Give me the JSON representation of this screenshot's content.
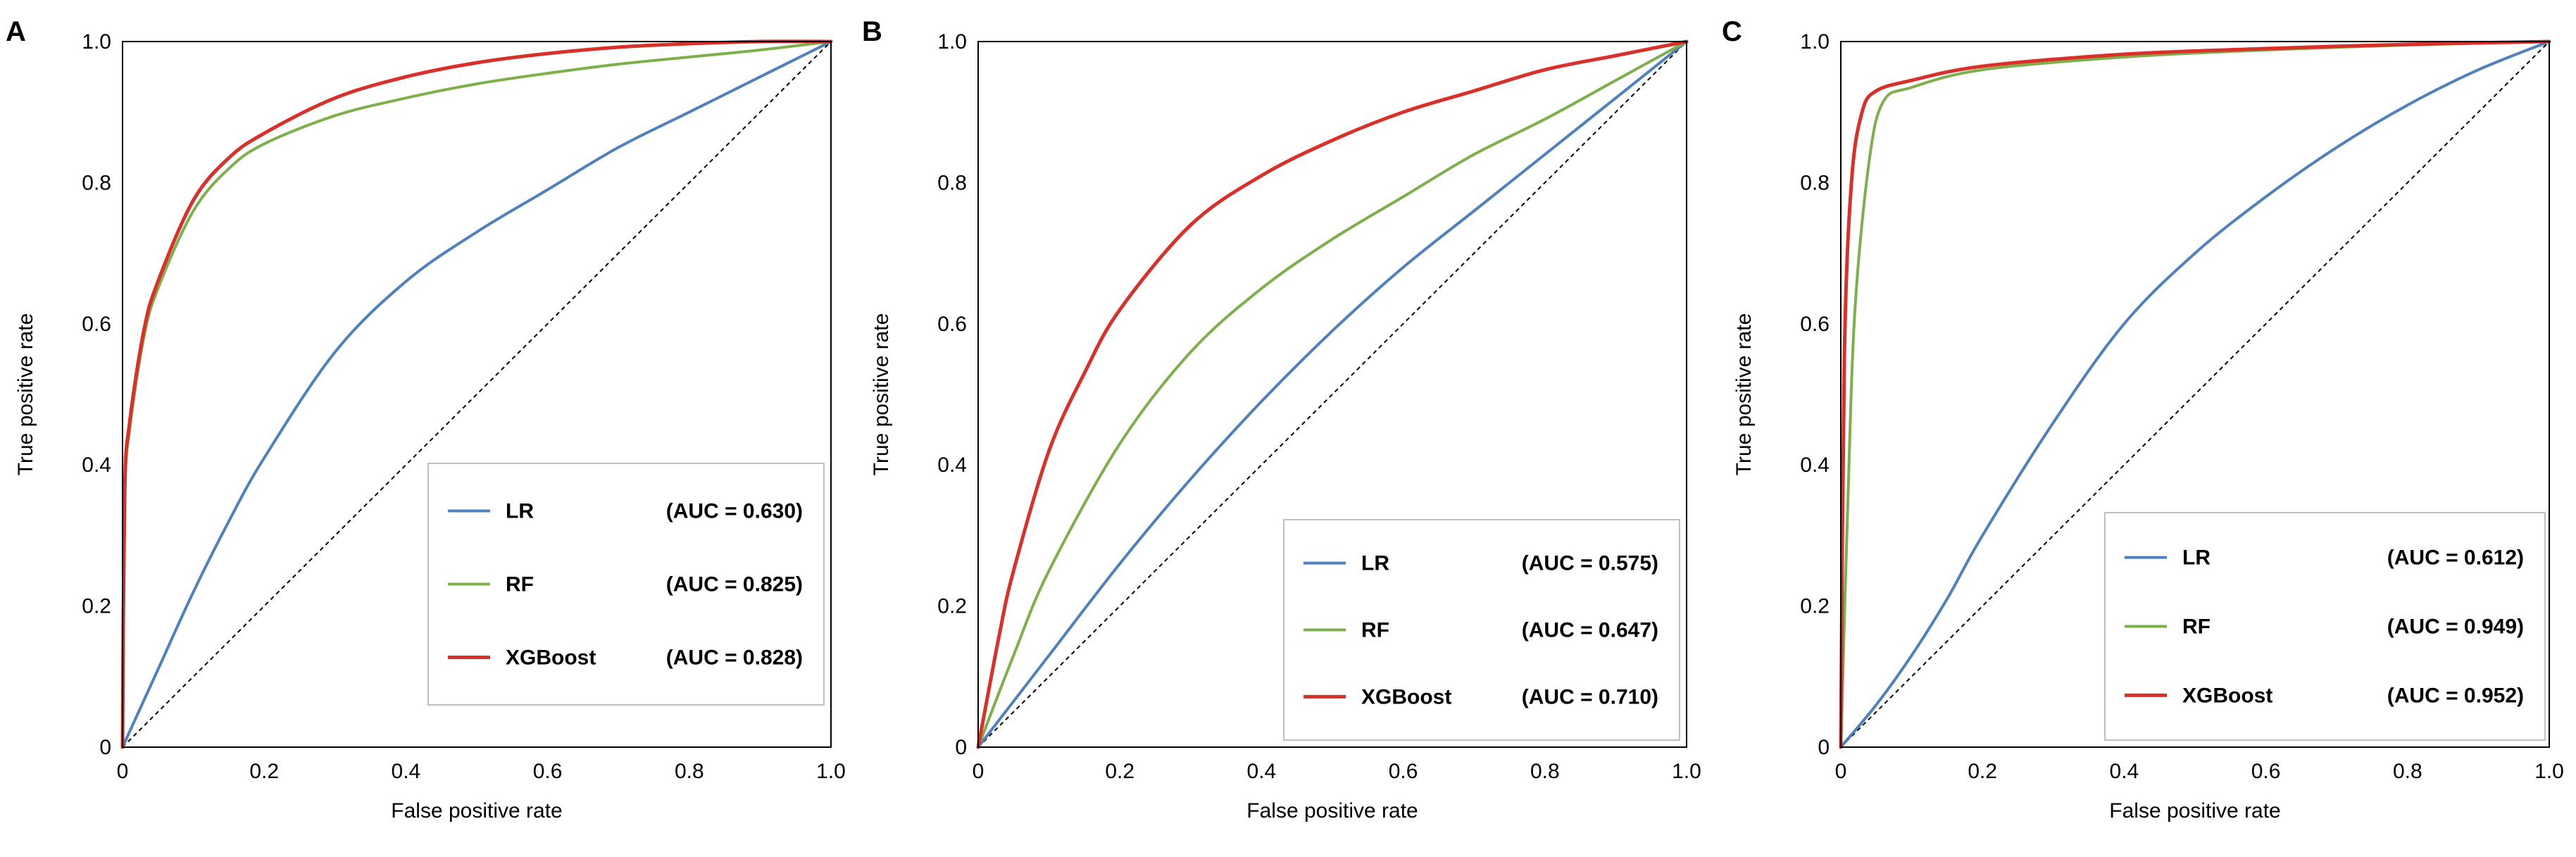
{
  "chart_data": [
    {
      "type": "line",
      "panel": "A",
      "xlabel": "False positive rate",
      "ylabel": "True positive rate",
      "xlim": [
        0,
        1
      ],
      "ylim": [
        0,
        1
      ],
      "x_tick_labels": [
        "0",
        "0.2",
        "0.4",
        "0.6",
        "0.8",
        "1.0"
      ],
      "y_tick_labels": [
        "0",
        "0.2",
        "0.4",
        "0.6",
        "0.8",
        "1.0"
      ],
      "legend_position": "bottom-right",
      "series": [
        {
          "name": "LR",
          "auc_label": "(AUC = 0.630)",
          "color": "#4f81bd",
          "points": [
            [
              0,
              0
            ],
            [
              0.05,
              0.11
            ],
            [
              0.1,
              0.22
            ],
            [
              0.15,
              0.32
            ],
            [
              0.2,
              0.41
            ],
            [
              0.3,
              0.56
            ],
            [
              0.4,
              0.66
            ],
            [
              0.5,
              0.73
            ],
            [
              0.6,
              0.79
            ],
            [
              0.7,
              0.85
            ],
            [
              0.8,
              0.9
            ],
            [
              0.9,
              0.95
            ],
            [
              1,
              1
            ]
          ]
        },
        {
          "name": "RF",
          "auc_label": "(AUC = 0.825)",
          "color": "#7db04b",
          "points": [
            [
              0,
              0
            ],
            [
              0.003,
              0.35
            ],
            [
              0.01,
              0.45
            ],
            [
              0.03,
              0.58
            ],
            [
              0.05,
              0.65
            ],
            [
              0.1,
              0.76
            ],
            [
              0.15,
              0.82
            ],
            [
              0.2,
              0.855
            ],
            [
              0.3,
              0.895
            ],
            [
              0.4,
              0.92
            ],
            [
              0.5,
              0.94
            ],
            [
              0.6,
              0.955
            ],
            [
              0.7,
              0.968
            ],
            [
              0.8,
              0.978
            ],
            [
              0.9,
              0.988
            ],
            [
              1,
              1
            ]
          ]
        },
        {
          "name": "XGBoost",
          "auc_label": "(AUC = 0.828)",
          "color": "#d9302a",
          "points": [
            [
              0,
              0
            ],
            [
              0.003,
              0.36
            ],
            [
              0.01,
              0.46
            ],
            [
              0.03,
              0.59
            ],
            [
              0.05,
              0.66
            ],
            [
              0.1,
              0.775
            ],
            [
              0.15,
              0.835
            ],
            [
              0.2,
              0.87
            ],
            [
              0.3,
              0.92
            ],
            [
              0.4,
              0.95
            ],
            [
              0.5,
              0.97
            ],
            [
              0.6,
              0.983
            ],
            [
              0.7,
              0.992
            ],
            [
              0.8,
              0.997
            ],
            [
              0.9,
              1
            ],
            [
              1,
              1
            ]
          ]
        }
      ]
    },
    {
      "type": "line",
      "panel": "B",
      "xlabel": "False positive rate",
      "ylabel": "True positive rate",
      "xlim": [
        0,
        1
      ],
      "ylim": [
        0,
        1
      ],
      "x_tick_labels": [
        "0",
        "0.2",
        "0.4",
        "0.6",
        "0.8",
        "1.0"
      ],
      "y_tick_labels": [
        "0",
        "0.2",
        "0.4",
        "0.6",
        "0.8",
        "1.0"
      ],
      "legend_position": "bottom-right",
      "series": [
        {
          "name": "LR",
          "auc_label": "(AUC = 0.575)",
          "color": "#4f81bd",
          "points": [
            [
              0,
              0
            ],
            [
              0.1,
              0.13
            ],
            [
              0.2,
              0.26
            ],
            [
              0.3,
              0.38
            ],
            [
              0.4,
              0.49
            ],
            [
              0.5,
              0.59
            ],
            [
              0.6,
              0.68
            ],
            [
              0.7,
              0.76
            ],
            [
              0.8,
              0.84
            ],
            [
              0.9,
              0.92
            ],
            [
              1,
              1
            ]
          ]
        },
        {
          "name": "RF",
          "auc_label": "(AUC = 0.647)",
          "color": "#7db04b",
          "points": [
            [
              0,
              0
            ],
            [
              0.05,
              0.13
            ],
            [
              0.1,
              0.25
            ],
            [
              0.2,
              0.43
            ],
            [
              0.3,
              0.56
            ],
            [
              0.4,
              0.65
            ],
            [
              0.5,
              0.72
            ],
            [
              0.6,
              0.78
            ],
            [
              0.7,
              0.84
            ],
            [
              0.8,
              0.89
            ],
            [
              0.9,
              0.945
            ],
            [
              1,
              1
            ]
          ]
        },
        {
          "name": "XGBoost",
          "auc_label": "(AUC = 0.710)",
          "color": "#d9302a",
          "points": [
            [
              0,
              0
            ],
            [
              0.03,
              0.16
            ],
            [
              0.05,
              0.25
            ],
            [
              0.1,
              0.42
            ],
            [
              0.15,
              0.53
            ],
            [
              0.2,
              0.62
            ],
            [
              0.3,
              0.74
            ],
            [
              0.4,
              0.81
            ],
            [
              0.5,
              0.86
            ],
            [
              0.6,
              0.9
            ],
            [
              0.7,
              0.93
            ],
            [
              0.8,
              0.96
            ],
            [
              0.9,
              0.98
            ],
            [
              1,
              1
            ]
          ]
        }
      ]
    },
    {
      "type": "line",
      "panel": "C",
      "xlabel": "False positive rate",
      "ylabel": "True positive rate",
      "xlim": [
        0,
        1
      ],
      "ylim": [
        0,
        1
      ],
      "x_tick_labels": [
        "0",
        "0.2",
        "0.4",
        "0.6",
        "0.8",
        "1.0"
      ],
      "y_tick_labels": [
        "0",
        "0.2",
        "0.4",
        "0.6",
        "0.8",
        "1.0"
      ],
      "legend_position": "bottom-right",
      "series": [
        {
          "name": "LR",
          "auc_label": "(AUC = 0.612)",
          "color": "#4f81bd",
          "points": [
            [
              0,
              0
            ],
            [
              0.05,
              0.06
            ],
            [
              0.1,
              0.13
            ],
            [
              0.15,
              0.21
            ],
            [
              0.2,
              0.3
            ],
            [
              0.3,
              0.46
            ],
            [
              0.4,
              0.6
            ],
            [
              0.5,
              0.7
            ],
            [
              0.6,
              0.78
            ],
            [
              0.7,
              0.85
            ],
            [
              0.8,
              0.91
            ],
            [
              0.9,
              0.96
            ],
            [
              1,
              1
            ]
          ]
        },
        {
          "name": "RF",
          "auc_label": "(AUC = 0.949)",
          "color": "#7db04b",
          "points": [
            [
              0,
              0
            ],
            [
              0.01,
              0.35
            ],
            [
              0.02,
              0.62
            ],
            [
              0.04,
              0.83
            ],
            [
              0.06,
              0.915
            ],
            [
              0.1,
              0.935
            ],
            [
              0.2,
              0.96
            ],
            [
              0.4,
              0.978
            ],
            [
              0.6,
              0.988
            ],
            [
              0.8,
              0.995
            ],
            [
              1,
              1
            ]
          ]
        },
        {
          "name": "XGBoost",
          "auc_label": "(AUC = 0.952)",
          "color": "#d9302a",
          "points": [
            [
              0,
              0
            ],
            [
              0.005,
              0.55
            ],
            [
              0.015,
              0.8
            ],
            [
              0.03,
              0.9
            ],
            [
              0.05,
              0.93
            ],
            [
              0.1,
              0.945
            ],
            [
              0.2,
              0.965
            ],
            [
              0.4,
              0.982
            ],
            [
              0.6,
              0.99
            ],
            [
              0.8,
              0.996
            ],
            [
              1,
              1
            ]
          ]
        }
      ]
    }
  ]
}
